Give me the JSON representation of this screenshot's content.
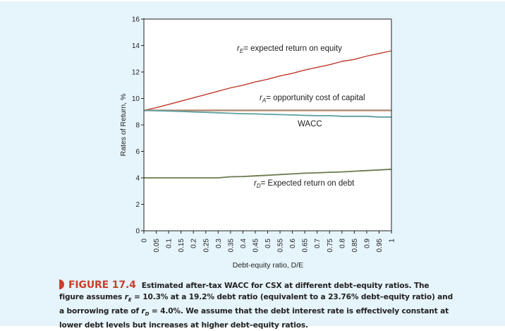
{
  "chart_data": {
    "type": "line",
    "title": "",
    "xlabel": "Debt-equity ratio, D/E",
    "ylabel": "Rates of Return, %",
    "xlim": [
      0,
      1
    ],
    "ylim": [
      0,
      16
    ],
    "grid": false,
    "x_ticks": [
      "0",
      "0.05",
      "0.1",
      "0.15",
      "0.2",
      "0.25",
      "0.3",
      "0.35",
      "0.4",
      "0.45",
      "0.5",
      "0.55",
      "0.6",
      "0.65",
      "0.7",
      "0.75",
      "0.8",
      "0.85",
      "0.9",
      "0.95",
      "1"
    ],
    "y_ticks": [
      "0",
      "2",
      "4",
      "6",
      "8",
      "10",
      "12",
      "14",
      "16"
    ],
    "x": [
      0,
      0.05,
      0.1,
      0.15,
      0.2,
      0.25,
      0.3,
      0.35,
      0.4,
      0.45,
      0.5,
      0.55,
      0.6,
      0.65,
      0.7,
      0.75,
      0.8,
      0.85,
      0.9,
      0.95,
      1
    ],
    "series": [
      {
        "name": "rE",
        "color": "#c0392b",
        "values": [
          9.1,
          9.3,
          9.55,
          9.8,
          10.05,
          10.3,
          10.55,
          10.8,
          11.0,
          11.25,
          11.45,
          11.7,
          11.9,
          12.15,
          12.35,
          12.55,
          12.8,
          12.95,
          13.2,
          13.4,
          13.6
        ]
      },
      {
        "name": "rA",
        "color": "#b08a70",
        "values": [
          9.1,
          9.1,
          9.1,
          9.1,
          9.1,
          9.1,
          9.1,
          9.1,
          9.1,
          9.1,
          9.1,
          9.1,
          9.1,
          9.1,
          9.1,
          9.1,
          9.1,
          9.1,
          9.1,
          9.1,
          9.1
        ]
      },
      {
        "name": "WACC",
        "color": "#5e9ea0",
        "values": [
          9.1,
          9.08,
          9.05,
          9.02,
          8.98,
          8.95,
          8.92,
          8.88,
          8.85,
          8.83,
          8.8,
          8.78,
          8.75,
          8.72,
          8.7,
          8.7,
          8.65,
          8.65,
          8.65,
          8.6,
          8.6
        ]
      },
      {
        "name": "rD",
        "color": "#6b7a4f",
        "values": [
          4.0,
          4.0,
          4.0,
          4.0,
          4.0,
          4.0,
          4.0,
          4.08,
          4.1,
          4.15,
          4.2,
          4.25,
          4.3,
          4.35,
          4.38,
          4.42,
          4.45,
          4.5,
          4.55,
          4.6,
          4.65
        ]
      }
    ],
    "annotations": [
      {
        "sym": "r",
        "sub": "E",
        "text": "= expected return on equity"
      },
      {
        "sym": "r",
        "sub": "A",
        "text": "= opportunity cost of capital"
      },
      {
        "sym": "",
        "sub": "",
        "text": "WACC"
      },
      {
        "sym": "r",
        "sub": "D",
        "text": "= Expected return on debt"
      }
    ]
  },
  "caption": {
    "figure_number": "FIGURE 17.4",
    "part1": "Estimated after-tax WACC for CSX at different debt–equity ratios. The figure assumes ",
    "sym1": "r",
    "sub1": "E",
    "part2": " = 10.3% at a 19.2% debt ratio (equivalent to a 23.76% debt–equity ratio) and a borrowing rate of ",
    "sym2": "r",
    "sub2": "D",
    "part3": " = 4.0%. We assume that the debt interest rate is effectively constant at lower debt levels but increases at higher debt–equity ratios."
  }
}
